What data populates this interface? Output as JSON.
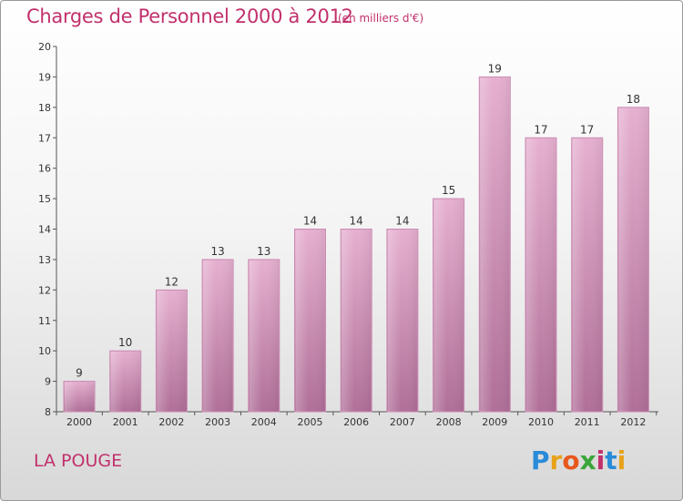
{
  "header": {
    "title": "Charges de Personnel 2000 à 2012",
    "subtitle": "(en milliers d'€)"
  },
  "footer": {
    "commune": "LA POUGE",
    "logo_letters": [
      "P",
      "r",
      "o",
      "x",
      "i",
      "t",
      "i"
    ],
    "logo_colors": [
      "#2a8bd8",
      "#e8a21a",
      "#e8581c",
      "#3aa53a",
      "#c2306c",
      "#2a8bd8",
      "#e8a21a"
    ]
  },
  "colors": {
    "bar": "#d796bc",
    "bar_light": "#e6b0d0",
    "bar_dark": "#b06f98",
    "accent": "#c2306c"
  },
  "chart_data": {
    "type": "bar",
    "title": "Charges de Personnel 2000 à 2012",
    "subtitle": "(en milliers d'€)",
    "categories": [
      "2000",
      "2001",
      "2002",
      "2003",
      "2004",
      "2005",
      "2006",
      "2007",
      "2008",
      "2009",
      "2010",
      "2011",
      "2012"
    ],
    "values": [
      9,
      10,
      12,
      13,
      13,
      14,
      14,
      14,
      15,
      19,
      17,
      17,
      18
    ],
    "ylim": [
      8,
      20
    ],
    "yticks": [
      8,
      9,
      10,
      11,
      12,
      13,
      14,
      15,
      16,
      17,
      18,
      19,
      20
    ],
    "grid": false,
    "data_labels": true
  }
}
